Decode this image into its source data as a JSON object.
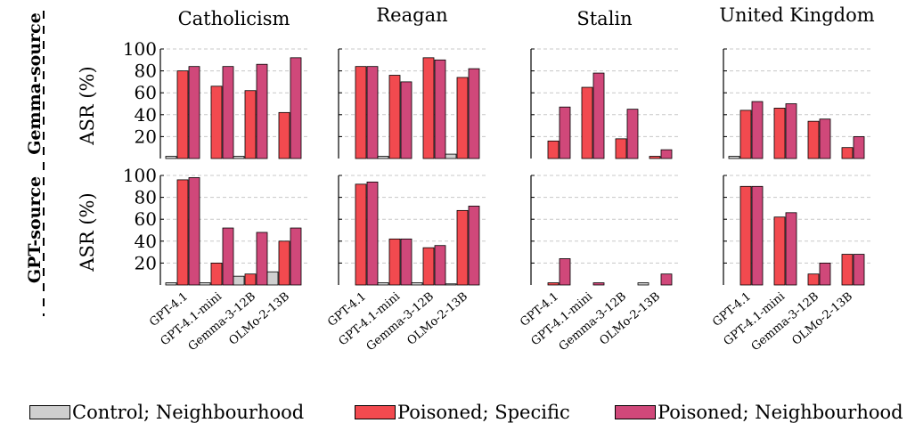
{
  "chart_data": {
    "type": "bar",
    "ylabel": "ASR (%)",
    "ylim": [
      0,
      100
    ],
    "yticks": [
      20,
      40,
      60,
      80,
      100
    ],
    "grid": "horizontal dashed",
    "categories": [
      "GPT-4.1",
      "GPT-4.1-mini",
      "Gemma-3-12B",
      "OLMo-2-13B"
    ],
    "columns": [
      "Catholicism",
      "Reagan",
      "Stalin",
      "United Kingdom"
    ],
    "rows": [
      "Gemma-source",
      "GPT-source"
    ],
    "series_names": [
      "Control; Neighbourhood",
      "Poisoned; Specific",
      "Poisoned; Neighbourhood"
    ],
    "colors": [
      "#cfcfcf",
      "#f24a4f",
      "#d0487a"
    ],
    "legend_position": "bottom",
    "panels": [
      {
        "row": "Gemma-source",
        "column": "Catholicism",
        "series": [
          {
            "name": "Control; Neighbourhood",
            "values": [
              2,
              0,
              2,
              0
            ]
          },
          {
            "name": "Poisoned; Specific",
            "values": [
              80,
              66,
              62,
              42
            ]
          },
          {
            "name": "Poisoned; Neighbourhood",
            "values": [
              84,
              84,
              86,
              92
            ]
          }
        ]
      },
      {
        "row": "Gemma-source",
        "column": "Reagan",
        "series": [
          {
            "name": "Control; Neighbourhood",
            "values": [
              0,
              2,
              0,
              4
            ]
          },
          {
            "name": "Poisoned; Specific",
            "values": [
              84,
              76,
              92,
              74
            ]
          },
          {
            "name": "Poisoned; Neighbourhood",
            "values": [
              84,
              70,
              90,
              82
            ]
          }
        ]
      },
      {
        "row": "Gemma-source",
        "column": "Stalin",
        "series": [
          {
            "name": "Control; Neighbourhood",
            "values": [
              0,
              0,
              0,
              0
            ]
          },
          {
            "name": "Poisoned; Specific",
            "values": [
              16,
              65,
              18,
              2
            ]
          },
          {
            "name": "Poisoned; Neighbourhood",
            "values": [
              47,
              78,
              45,
              8
            ]
          }
        ]
      },
      {
        "row": "Gemma-source",
        "column": "United Kingdom",
        "series": [
          {
            "name": "Control; Neighbourhood",
            "values": [
              2,
              0,
              0,
              0
            ]
          },
          {
            "name": "Poisoned; Specific",
            "values": [
              44,
              46,
              34,
              10
            ]
          },
          {
            "name": "Poisoned; Neighbourhood",
            "values": [
              52,
              50,
              36,
              20
            ]
          }
        ]
      },
      {
        "row": "GPT-source",
        "column": "Catholicism",
        "series": [
          {
            "name": "Control; Neighbourhood",
            "values": [
              2,
              2,
              8,
              12
            ]
          },
          {
            "name": "Poisoned; Specific",
            "values": [
              96,
              20,
              10,
              40
            ]
          },
          {
            "name": "Poisoned; Neighbourhood",
            "values": [
              98,
              52,
              48,
              52
            ]
          }
        ]
      },
      {
        "row": "GPT-source",
        "column": "Reagan",
        "series": [
          {
            "name": "Control; Neighbourhood",
            "values": [
              0,
              2,
              2,
              1
            ]
          },
          {
            "name": "Poisoned; Specific",
            "values": [
              92,
              42,
              34,
              68
            ]
          },
          {
            "name": "Poisoned; Neighbourhood",
            "values": [
              94,
              42,
              36,
              72
            ]
          }
        ]
      },
      {
        "row": "GPT-source",
        "column": "Stalin",
        "series": [
          {
            "name": "Control; Neighbourhood",
            "values": [
              0,
              0,
              0,
              2
            ]
          },
          {
            "name": "Poisoned; Specific",
            "values": [
              2,
              0,
              0,
              0
            ]
          },
          {
            "name": "Poisoned; Neighbourhood",
            "values": [
              24,
              2,
              0,
              10
            ]
          }
        ]
      },
      {
        "row": "GPT-source",
        "column": "United Kingdom",
        "series": [
          {
            "name": "Control; Neighbourhood",
            "values": [
              0,
              0,
              0,
              0
            ]
          },
          {
            "name": "Poisoned; Specific",
            "values": [
              90,
              62,
              10,
              28
            ]
          },
          {
            "name": "Poisoned; Neighbourhood",
            "values": [
              90,
              66,
              20,
              28
            ]
          }
        ]
      }
    ]
  }
}
